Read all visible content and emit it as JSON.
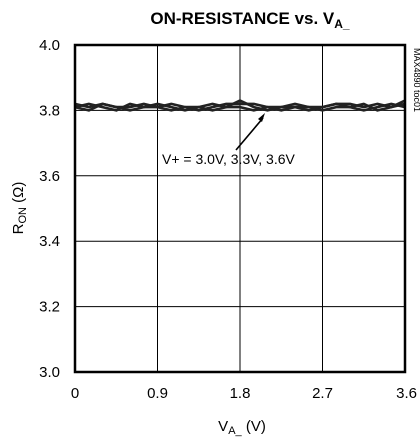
{
  "chart_data": {
    "type": "line",
    "title": "ON-RESISTANCE vs. V",
    "title_subscript": "A_",
    "xlabel_main": "V",
    "xlabel_subscript": "A_",
    "xlabel_unit": " (V)",
    "ylabel_main": "R",
    "ylabel_subscript": "ON",
    "ylabel_unit": " (Ω)",
    "xlim": [
      0,
      3.6
    ],
    "ylim": [
      3.0,
      4.0
    ],
    "x_ticks": [
      0,
      0.9,
      1.8,
      2.7,
      3.6
    ],
    "x_tick_labels": [
      "0",
      "0.9",
      "1.8",
      "2.7",
      "3.6"
    ],
    "y_ticks": [
      3.0,
      3.2,
      3.4,
      3.6,
      3.8,
      4.0
    ],
    "y_tick_labels": [
      "3.0",
      "3.2",
      "3.4",
      "3.6",
      "3.8",
      "4.0"
    ],
    "grid": true,
    "annotation": "V+ = 3.0V, 3.3V, 3.6V",
    "side_label": "MAX4890 toc01",
    "series": [
      {
        "x": [
          0,
          0.15,
          0.3,
          0.45,
          0.6,
          0.75,
          0.9,
          1.05,
          1.2,
          1.35,
          1.5,
          1.65,
          1.8,
          1.95,
          2.1,
          2.25,
          2.4,
          2.55,
          2.7,
          2.85,
          3.0,
          3.15,
          3.3,
          3.45,
          3.6
        ],
        "values": [
          3.81,
          3.82,
          3.81,
          3.8,
          3.82,
          3.81,
          3.82,
          3.81,
          3.8,
          3.81,
          3.82,
          3.81,
          3.83,
          3.81,
          3.8,
          3.81,
          3.81,
          3.8,
          3.81,
          3.82,
          3.81,
          3.82,
          3.8,
          3.81,
          3.83
        ]
      },
      {
        "x": [
          0,
          0.15,
          0.3,
          0.45,
          0.6,
          0.75,
          0.9,
          1.05,
          1.2,
          1.35,
          1.5,
          1.65,
          1.8,
          1.95,
          2.1,
          2.25,
          2.4,
          2.55,
          2.7,
          2.85,
          3.0,
          3.15,
          3.3,
          3.45,
          3.6
        ],
        "values": [
          3.82,
          3.81,
          3.82,
          3.81,
          3.81,
          3.82,
          3.81,
          3.82,
          3.81,
          3.8,
          3.81,
          3.82,
          3.82,
          3.82,
          3.81,
          3.81,
          3.82,
          3.81,
          3.81,
          3.82,
          3.82,
          3.81,
          3.82,
          3.81,
          3.82
        ]
      },
      {
        "x": [
          0,
          0.15,
          0.3,
          0.45,
          0.6,
          0.75,
          0.9,
          1.05,
          1.2,
          1.35,
          1.5,
          1.65,
          1.8,
          1.95,
          2.1,
          2.25,
          2.4,
          2.55,
          2.7,
          2.85,
          3.0,
          3.15,
          3.3,
          3.45,
          3.6
        ],
        "values": [
          3.81,
          3.8,
          3.82,
          3.81,
          3.8,
          3.81,
          3.81,
          3.8,
          3.81,
          3.81,
          3.8,
          3.81,
          3.81,
          3.8,
          3.81,
          3.8,
          3.81,
          3.81,
          3.8,
          3.81,
          3.81,
          3.8,
          3.81,
          3.82,
          3.81
        ]
      }
    ]
  }
}
